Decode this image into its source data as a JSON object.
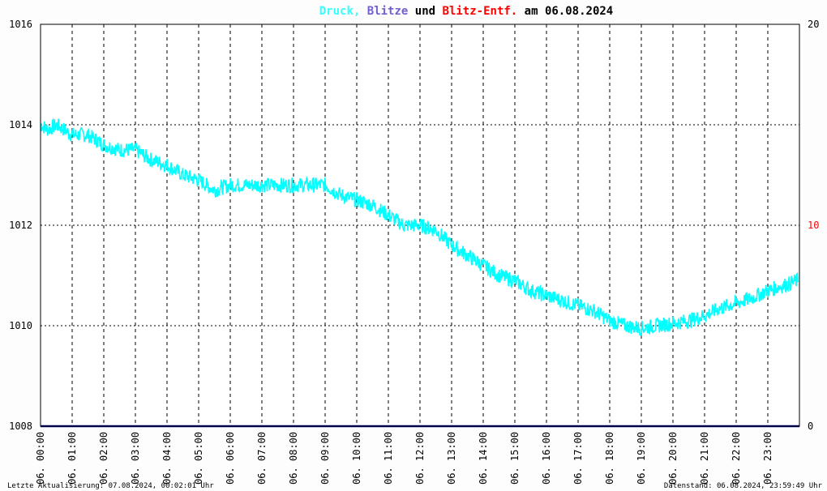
{
  "title": {
    "parts": [
      {
        "text": "Druck",
        "color": "#33ffff"
      },
      {
        "text": ",",
        "color": "#33ffff"
      },
      {
        "text": " Blitze",
        "color": "#7060d0"
      },
      {
        "text": " und ",
        "color": "#000000"
      },
      {
        "text": "Blitz-Entf.",
        "color": "#ff0000"
      },
      {
        "text": " am 06.08.2024",
        "color": "#000000"
      }
    ]
  },
  "footer": {
    "left": "Letzte Aktualisierung: 07.08.2024, 00:02:01 Uhr",
    "right": "Datenstand: 06.08.2024, 23:59:49 Uhr"
  },
  "colors": {
    "pressure": "#00ffff",
    "lightning": "#000080",
    "distance_axis": "#ff0000",
    "grid": "#000000",
    "background": "#ffffff"
  },
  "chart_data": {
    "type": "line",
    "title": "Druck, Blitze und Blitz-Entf. am 06.08.2024",
    "y_left": {
      "min": 1008,
      "max": 1016,
      "ticks": [
        "1008",
        "1010",
        "1012",
        "1014",
        "1016"
      ]
    },
    "y_right": {
      "min": 0,
      "max": 20,
      "ticks": [
        "0",
        "10",
        "20"
      ]
    },
    "x_range_hours": [
      0,
      24
    ],
    "x_ticks": [
      "06. 00:00",
      "06. 01:00",
      "06. 02:00",
      "06. 03:00",
      "06. 04:00",
      "06. 05:00",
      "06. 06:00",
      "06. 07:00",
      "06. 08:00",
      "06. 09:00",
      "06. 10:00",
      "06. 11:00",
      "06. 12:00",
      "06. 13:00",
      "06. 14:00",
      "06. 15:00",
      "06. 16:00",
      "06. 17:00",
      "06. 18:00",
      "06. 19:00",
      "06. 20:00",
      "06. 21:00",
      "06. 22:00",
      "06. 23:00"
    ],
    "grid": true,
    "series": [
      {
        "name": "Druck",
        "axis": "left",
        "x": [
          0,
          0.25,
          0.5,
          1,
          1.5,
          2,
          2.5,
          3,
          3.5,
          4,
          4.5,
          5,
          5.5,
          6,
          6.5,
          7,
          7.5,
          8,
          8.5,
          9,
          9.5,
          10,
          10.5,
          11,
          11.5,
          12,
          12.5,
          13,
          13.5,
          14,
          14.5,
          15,
          15.5,
          16,
          16.5,
          17,
          17.5,
          18,
          18.5,
          19,
          19.5,
          20,
          20.5,
          21,
          21.5,
          22,
          22.5,
          23,
          23.5,
          23.95
        ],
        "values": [
          1014.0,
          1013.9,
          1014.0,
          1013.8,
          1013.8,
          1013.6,
          1013.5,
          1013.5,
          1013.3,
          1013.2,
          1013.0,
          1012.9,
          1012.7,
          1012.8,
          1012.8,
          1012.8,
          1012.8,
          1012.8,
          1012.8,
          1012.8,
          1012.6,
          1012.5,
          1012.4,
          1012.2,
          1012.0,
          1012.0,
          1011.9,
          1011.6,
          1011.4,
          1011.2,
          1011.0,
          1010.9,
          1010.7,
          1010.6,
          1010.5,
          1010.4,
          1010.3,
          1010.1,
          1010.0,
          1009.95,
          1010.0,
          1010.05,
          1010.1,
          1010.2,
          1010.35,
          1010.45,
          1010.55,
          1010.7,
          1010.8,
          1010.9
        ]
      },
      {
        "name": "Blitze",
        "axis": "right",
        "x": [
          0,
          24
        ],
        "values": [
          0,
          0
        ]
      }
    ]
  }
}
